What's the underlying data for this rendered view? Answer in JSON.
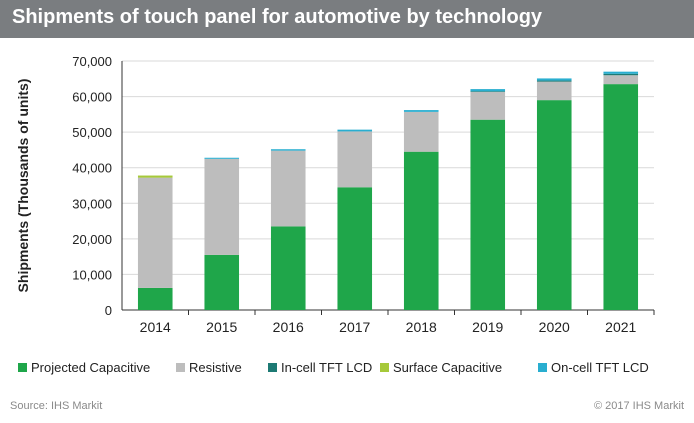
{
  "title": "Shipments of touch panel for automotive by technology",
  "footer": {
    "source": "Source: IHS Markit",
    "copyright": "© 2017 IHS Markit"
  },
  "colors": {
    "header_bg": "#7a7d80",
    "grid": "#d9d9d9"
  },
  "chart_data": {
    "type": "bar",
    "stacked": true,
    "title": "",
    "xlabel": "",
    "ylabel": "Shipments (Thousands of units)",
    "ylim": [
      0,
      70000
    ],
    "yticks": [
      0,
      10000,
      20000,
      30000,
      40000,
      50000,
      60000,
      70000
    ],
    "ytick_labels": [
      "0",
      "10,000",
      "20,000",
      "30,000",
      "40,000",
      "50,000",
      "60,000",
      "70,000"
    ],
    "grid": "horizontal",
    "legend_position": "bottom",
    "categories": [
      "2014",
      "2015",
      "2016",
      "2017",
      "2018",
      "2019",
      "2020",
      "2021"
    ],
    "series": [
      {
        "name": "Projected Capacitive",
        "color": "#1fa64a",
        "values": [
          6200,
          15500,
          23500,
          34500,
          44500,
          53500,
          59000,
          63500
        ]
      },
      {
        "name": "Resistive",
        "color": "#bdbdbd",
        "values": [
          31000,
          27000,
          21300,
          15700,
          11200,
          7800,
          5200,
          2500
        ]
      },
      {
        "name": "In-cell TFT LCD",
        "color": "#1d7a74",
        "values": [
          0,
          0,
          0,
          0,
          0,
          200,
          300,
          400
        ]
      },
      {
        "name": "Surface Capacitive",
        "color": "#a6c93a",
        "values": [
          600,
          0,
          0,
          0,
          0,
          0,
          0,
          0
        ]
      },
      {
        "name": "On-cell TFT LCD",
        "color": "#29aed0",
        "values": [
          0,
          300,
          400,
          500,
          500,
          600,
          600,
          600
        ]
      }
    ]
  }
}
